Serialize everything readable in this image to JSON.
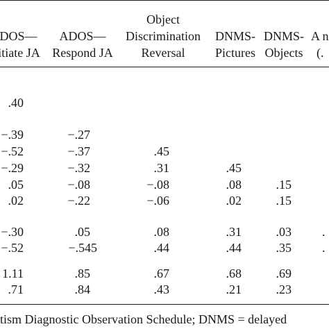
{
  "table": {
    "headers": [
      {
        "lines": [
          "ADOS—",
          "Initiate JA"
        ]
      },
      {
        "lines": [
          "ADOS—",
          "Respond JA"
        ]
      },
      {
        "lines": [
          "Object",
          "Discrimination",
          "Reversal"
        ]
      },
      {
        "lines": [
          "DNMS-",
          "Pictures"
        ]
      },
      {
        "lines": [
          "DNMS-",
          "Objects"
        ]
      },
      {
        "lines": [
          "A n",
          "(."
        ]
      }
    ],
    "rows": [
      [
        ".40",
        "",
        "",
        "",
        "",
        ""
      ],
      [
        "−.39",
        "−.27",
        "",
        "",
        "",
        ""
      ],
      [
        "−.52",
        "−.37",
        ".45",
        "",
        "",
        ""
      ],
      [
        "−.29",
        "−.32",
        ".31",
        ".45",
        "",
        ""
      ],
      [
        ".05",
        "−.08",
        "−.08",
        ".08",
        ".15",
        ""
      ],
      [
        ".02",
        "−.22",
        "−.06",
        ".02",
        ".15",
        ""
      ],
      [
        "−.30",
        ".05",
        ".08",
        ".31",
        ".03",
        "."
      ],
      [
        "−.52",
        "−.545",
        ".44",
        ".44",
        ".35",
        "."
      ],
      [
        "1.11",
        ".85",
        ".67",
        ".68",
        ".69",
        ""
      ],
      [
        ".71",
        ".84",
        ".43",
        ".21",
        ".23",
        ""
      ]
    ]
  },
  "footnote": "tism Diagnostic Observation Schedule; DNMS = delayed"
}
